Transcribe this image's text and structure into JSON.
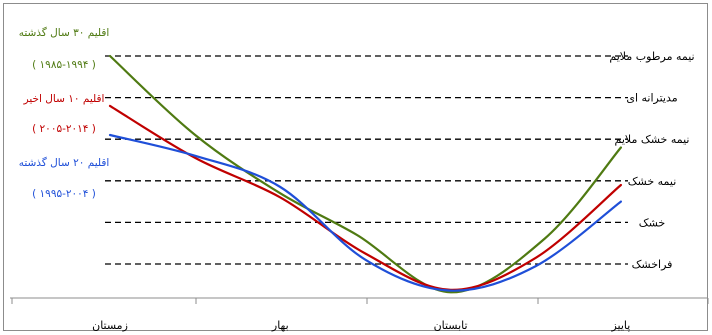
{
  "chart_data": {
    "type": "line",
    "x_categories": [
      "زمستان",
      "بهار",
      "تابستان",
      "پاییز"
    ],
    "climate_zones": [
      "نیمه مرطوب ملایم",
      "مدیترانه ای",
      "نیمه خشک ملایم",
      "نیمه خشک",
      "خشک",
      "فراخشک"
    ],
    "series": [
      {
        "label_title": "اقلیم ۳۰ سال گذشته",
        "label_period": "( ۱۹۸۵-۱۹۹۴ )",
        "color": "#4f7a12",
        "points": [
          [
            0,
            5.0
          ],
          [
            0.5,
            3.1
          ],
          [
            1,
            1.7
          ],
          [
            1.45,
            0.7
          ],
          [
            2,
            -0.68
          ],
          [
            2.55,
            0.6
          ],
          [
            3,
            2.8
          ]
        ]
      },
      {
        "label_title": "اقلیم ۱۰ سال اخیر",
        "label_period": "( ۲۰۰۵-۲۰۱۴ )",
        "color": "#c00000",
        "points": [
          [
            0,
            3.8
          ],
          [
            0.5,
            2.55
          ],
          [
            1,
            1.6
          ],
          [
            1.5,
            0.25
          ],
          [
            2,
            -0.62
          ],
          [
            2.5,
            0.15
          ],
          [
            3,
            1.9
          ]
        ]
      },
      {
        "label_title": "اقلیم ۲۰ سال گذشته",
        "label_period": "( ۱۹۹۵-۲۰۰۴ )",
        "color": "#1f4fd8",
        "points": [
          [
            0,
            3.1
          ],
          [
            0.5,
            2.6
          ],
          [
            1,
            1.85
          ],
          [
            1.5,
            0.1
          ],
          [
            2,
            -0.64
          ],
          [
            2.5,
            -0.05
          ],
          [
            3,
            1.5
          ]
        ]
      }
    ]
  }
}
